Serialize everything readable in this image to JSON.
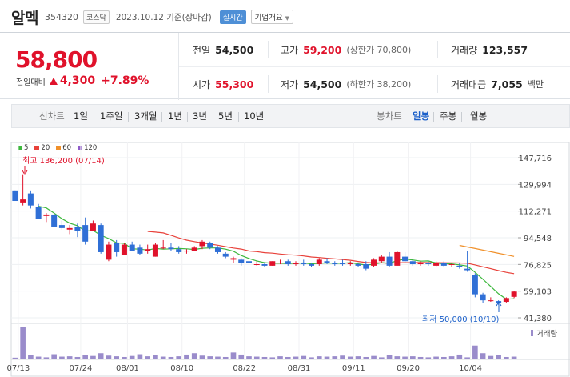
{
  "header": {
    "name": "알멕",
    "code": "354320",
    "market": "코스닥",
    "date": "2023.10.12 기준(장마감)",
    "realtime": "실시간",
    "company_info": "기업개요"
  },
  "quote": {
    "price": "58,800",
    "change_label": "전일대비",
    "change": "4,300",
    "change_pct": "+7.89%",
    "prev_close_label": "전일",
    "prev_close": "54,500",
    "open_label": "시가",
    "open": "55,300",
    "high_label": "고가",
    "high": "59,200",
    "upper_limit": "(상한가 70,800)",
    "low_label": "저가",
    "low": "54,500",
    "lower_limit": "(하한가 38,200)",
    "volume_label": "거래량",
    "volume": "123,557",
    "value_label": "거래대금",
    "value": "7,055",
    "value_unit": "백만"
  },
  "tabs": {
    "line_chart": "선차트",
    "periods": [
      "1일",
      "1주일",
      "3개월",
      "1년",
      "3년",
      "5년",
      "10년"
    ],
    "candle_chart": "봉차트",
    "candles": [
      "일봉",
      "주봉",
      "월봉"
    ],
    "selected_candle": "일봉"
  },
  "colors": {
    "up": "#e0122b",
    "down": "#2f6fd6",
    "ma5": "#3db83d",
    "ma20": "#e8413a",
    "ma60": "#f0902a",
    "ma120": "#8e5ac9",
    "volume": "#9a8ccb"
  },
  "chart_data": {
    "type": "candlestick",
    "legend": [
      {
        "name": "5",
        "color": "#3db83d"
      },
      {
        "name": "20",
        "color": "#e8413a"
      },
      {
        "name": "60",
        "color": "#f0902a"
      },
      {
        "name": "120",
        "color": "#8e5ac9"
      }
    ],
    "ylim": [
      41380,
      147716
    ],
    "y_ticks": [
      "147,716",
      "129,994",
      "112,271",
      "94,548",
      "76,825",
      "59,103",
      "41,380"
    ],
    "x_ticks": [
      "07/13",
      "07/24",
      "08/01",
      "08/10",
      "08/22",
      "08/31",
      "09/11",
      "09/20",
      "10/04"
    ],
    "max_label": "최고 136,200 (07/14)",
    "min_label": "최저 50,000 (10/10)",
    "volume_label": "거래량",
    "ohlc": [
      [
        126000,
        126000,
        119000,
        119000
      ],
      [
        118000,
        136200,
        116000,
        120000
      ],
      [
        124000,
        126000,
        114000,
        116000
      ],
      [
        115000,
        117000,
        107000,
        107000
      ],
      [
        109000,
        111000,
        105000,
        110000
      ],
      [
        110000,
        111000,
        102000,
        102000
      ],
      [
        103000,
        106000,
        100000,
        101000
      ],
      [
        100000,
        103000,
        97000,
        101000
      ],
      [
        102000,
        104000,
        95000,
        99000
      ],
      [
        103000,
        108000,
        90000,
        92000
      ],
      [
        99000,
        106000,
        99000,
        104000
      ],
      [
        103000,
        104000,
        84000,
        85000
      ],
      [
        80000,
        92000,
        79000,
        90000
      ],
      [
        91000,
        93000,
        82000,
        85000
      ],
      [
        83000,
        91000,
        83000,
        90000
      ],
      [
        90000,
        92000,
        86000,
        86000
      ],
      [
        88000,
        90000,
        83000,
        84000
      ],
      [
        86000,
        90000,
        84000,
        87000
      ],
      [
        82000,
        91000,
        82000,
        90000
      ],
      [
        88000,
        93000,
        87000,
        88000
      ],
      [
        88000,
        91000,
        86000,
        87000
      ],
      [
        87000,
        89000,
        84000,
        85000
      ],
      [
        86000,
        87000,
        84000,
        86000
      ],
      [
        86000,
        89000,
        86000,
        88000
      ],
      [
        89000,
        93000,
        87000,
        92000
      ],
      [
        91000,
        92000,
        87000,
        88000
      ],
      [
        88000,
        89000,
        84000,
        85000
      ],
      [
        84000,
        85000,
        81000,
        82000
      ],
      [
        80000,
        82000,
        78000,
        81000
      ],
      [
        80000,
        81000,
        76000,
        78000
      ],
      [
        79000,
        80000,
        77000,
        78000
      ],
      [
        77000,
        79000,
        76000,
        77000
      ],
      [
        77000,
        78000,
        75000,
        76000
      ],
      [
        76000,
        79000,
        76000,
        79000
      ],
      [
        78000,
        80000,
        77000,
        78000
      ],
      [
        79000,
        80000,
        76000,
        77000
      ],
      [
        77000,
        79000,
        76000,
        78000
      ],
      [
        78000,
        80000,
        76000,
        77000
      ],
      [
        77000,
        78000,
        75000,
        76000
      ],
      [
        77000,
        81000,
        76000,
        80000
      ],
      [
        79000,
        81000,
        77000,
        78000
      ],
      [
        78000,
        79000,
        76000,
        77000
      ],
      [
        78000,
        80000,
        76000,
        77000
      ],
      [
        77000,
        79000,
        76000,
        78000
      ],
      [
        77000,
        78000,
        75000,
        76000
      ],
      [
        77000,
        79000,
        73000,
        74000
      ],
      [
        76000,
        81000,
        75000,
        80000
      ],
      [
        79000,
        83000,
        78000,
        82000
      ],
      [
        82000,
        85000,
        75000,
        76000
      ],
      [
        76000,
        86000,
        76000,
        85000
      ],
      [
        82000,
        85000,
        78000,
        79000
      ],
      [
        79000,
        80000,
        76000,
        77000
      ],
      [
        77000,
        79000,
        76000,
        78000
      ],
      [
        78000,
        79000,
        76000,
        77000
      ],
      [
        76000,
        79000,
        75000,
        78000
      ],
      [
        78000,
        79000,
        75000,
        76000
      ],
      [
        77000,
        78000,
        75000,
        77000
      ],
      [
        76000,
        78000,
        74000,
        75000
      ],
      [
        74000,
        86000,
        72000,
        73000
      ],
      [
        70000,
        71000,
        55000,
        57000
      ],
      [
        57000,
        58000,
        51500,
        53000
      ],
      [
        53000,
        55000,
        52000,
        53000
      ],
      [
        52500,
        53000,
        50000,
        51000
      ],
      [
        52000,
        55000,
        51500,
        54500
      ],
      [
        55300,
        59200,
        54500,
        58800
      ]
    ],
    "volume": [
      5,
      95,
      12,
      8,
      6,
      15,
      8,
      9,
      7,
      12,
      10,
      18,
      11,
      9,
      7,
      10,
      15,
      9,
      12,
      8,
      7,
      9,
      14,
      18,
      11,
      9,
      8,
      7,
      20,
      14,
      9,
      8,
      7,
      6,
      9,
      7,
      8,
      10,
      6,
      9,
      8,
      9,
      11,
      8,
      9,
      7,
      10,
      6,
      13,
      9,
      8,
      9,
      7,
      6,
      8,
      7,
      9,
      14,
      6,
      40,
      18,
      10,
      12,
      7,
      8
    ]
  }
}
